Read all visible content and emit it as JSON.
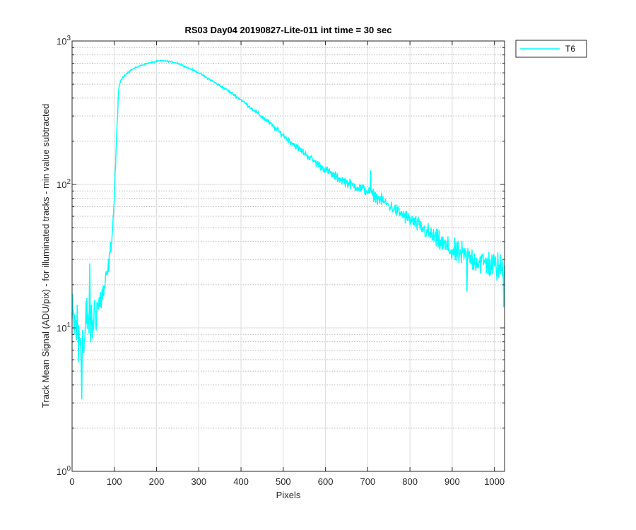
{
  "chart_data": {
    "type": "line",
    "title": "RS03 Day04 20190827-Lite-011 int time = 30 sec",
    "xlabel": "Pixels",
    "ylabel": "Track Mean Signal (ADU/pix) - for illuminated tracks - min value subtracted",
    "xlim": [
      0,
      1024
    ],
    "ylim": [
      1,
      1000
    ],
    "yscale": "log",
    "grid": true,
    "minor_grid": true,
    "legend_placement": "outside-top-right",
    "x_ticks": [
      "0",
      "100",
      "200",
      "300",
      "400",
      "500",
      "600",
      "700",
      "800",
      "900",
      "1000"
    ],
    "y_ticks": [
      {
        "base": "10",
        "exp": "0"
      },
      {
        "base": "10",
        "exp": "1"
      },
      {
        "base": "10",
        "exp": "2"
      },
      {
        "base": "10",
        "exp": "3"
      }
    ],
    "series": [
      {
        "name": "T6",
        "color": "#00ffff",
        "anchors_x": [
          0,
          10,
          20,
          28,
          35,
          45,
          55,
          65,
          75,
          85,
          95,
          100,
          105,
          110,
          115,
          125,
          140,
          160,
          180,
          200,
          215,
          230,
          250,
          280,
          300,
          330,
          360,
          400,
          430,
          460,
          500,
          540,
          580,
          620,
          660,
          700,
          740,
          780,
          820,
          860,
          900,
          950,
          1000,
          1024
        ],
        "anchors_y": [
          11,
          10,
          9,
          7,
          12,
          11,
          13,
          15,
          18,
          25,
          45,
          80,
          200,
          450,
          530,
          580,
          630,
          670,
          700,
          720,
          730,
          720,
          700,
          640,
          600,
          530,
          470,
          390,
          330,
          280,
          220,
          175,
          140,
          115,
          100,
          90,
          75,
          62,
          52,
          42,
          34,
          30,
          27,
          25
        ],
        "noise_amp": [
          0.35,
          0.35,
          0.4,
          0.4,
          0.3,
          0.3,
          0.25,
          0.2,
          0.15,
          0.1,
          0.06,
          0.05,
          0.04,
          0.02,
          0.01,
          0.008,
          0.008,
          0.008,
          0.008,
          0.008,
          0.008,
          0.008,
          0.008,
          0.01,
          0.01,
          0.012,
          0.015,
          0.018,
          0.02,
          0.025,
          0.03,
          0.035,
          0.04,
          0.045,
          0.05,
          0.055,
          0.06,
          0.07,
          0.08,
          0.1,
          0.12,
          0.14,
          0.15,
          0.16
        ],
        "spikes": [
          {
            "x": 23,
            "y": 3.2
          },
          {
            "x": 15,
            "y": 5.8
          },
          {
            "x": 42,
            "y": 28
          },
          {
            "x": 48,
            "y": 8.5
          },
          {
            "x": 60,
            "y": 14
          },
          {
            "x": 707,
            "y": 125
          },
          {
            "x": 935,
            "y": 18
          },
          {
            "x": 1022,
            "y": 14
          }
        ]
      }
    ]
  }
}
